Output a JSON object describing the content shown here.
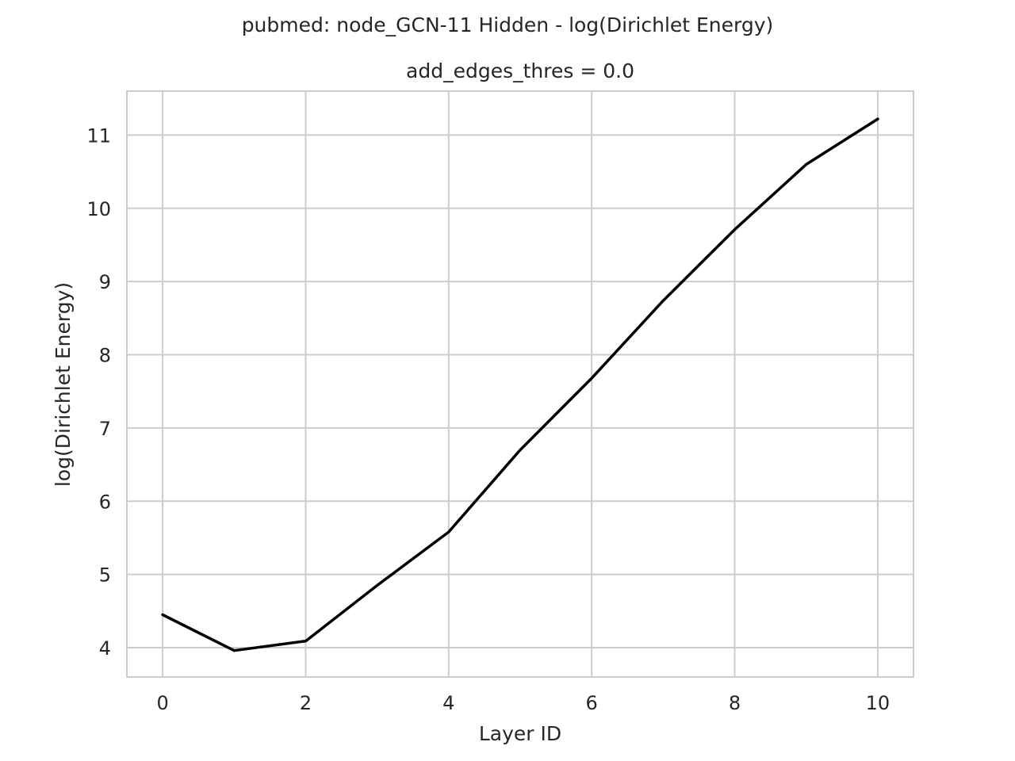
{
  "chart_data": {
    "type": "line",
    "title": "pubmed: node_GCN-11 Hidden - log(Dirichlet Energy)",
    "subtitle": "add_edges_thres = 0.0",
    "xlabel": "Layer ID",
    "ylabel": "log(Dirichlet Energy)",
    "xlim": [
      -0.5,
      10.5
    ],
    "ylim": [
      3.6,
      11.6
    ],
    "xticks": [
      0,
      2,
      4,
      6,
      8,
      10
    ],
    "yticks": [
      4,
      5,
      6,
      7,
      8,
      9,
      10,
      11
    ],
    "grid": true,
    "legend": "none",
    "series": [
      {
        "color": "#000000",
        "x": [
          0,
          1,
          2,
          3,
          4,
          5,
          6,
          7,
          8,
          9,
          10
        ],
        "y": [
          4.45,
          3.96,
          4.09,
          4.85,
          5.58,
          6.7,
          7.68,
          8.74,
          9.71,
          10.6,
          11.22
        ]
      }
    ]
  }
}
